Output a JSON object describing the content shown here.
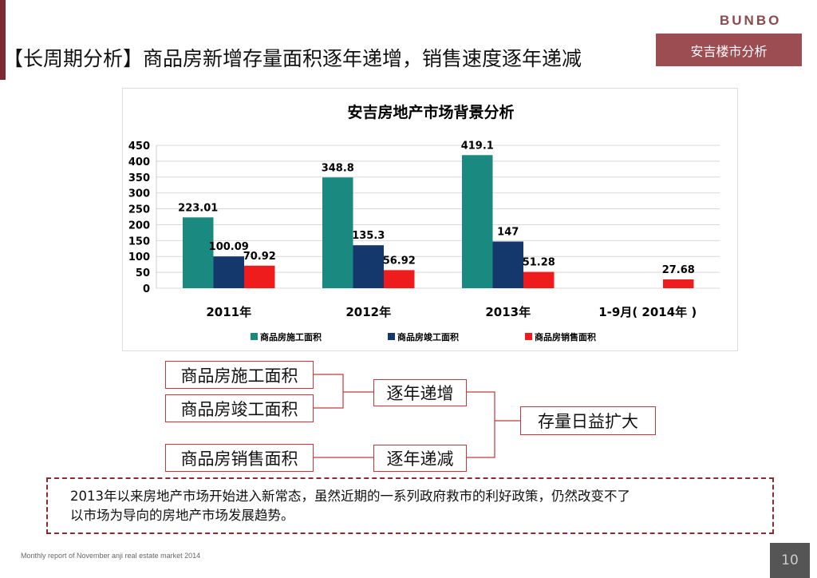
{
  "header": {
    "title": "【长周期分析】商品房新增存量面积逐年递增，销售速度逐年递减",
    "logo": "BUNBO",
    "section_tag": "安吉楼市分析"
  },
  "colors": {
    "accent": "#9b4d52",
    "teal": "#1a8a80",
    "navy": "#14386b",
    "red": "#ee1c1c"
  },
  "chart_data": {
    "type": "bar",
    "title": "安吉房地产市场背景分析",
    "categories": [
      "2011年",
      "2012年",
      "2013年",
      "1-9月( 2014年 )"
    ],
    "series": [
      {
        "name": "商品房施工面积",
        "color": "#1a8a80",
        "values": [
          223.01,
          348.8,
          419.1,
          null
        ]
      },
      {
        "name": "商品房竣工面积",
        "color": "#14386b",
        "values": [
          100.09,
          135.3,
          147,
          null
        ]
      },
      {
        "name": "商品房销售面积",
        "color": "#ee1c1c",
        "values": [
          70.92,
          56.92,
          51.28,
          27.68
        ]
      }
    ],
    "data_labels": [
      [
        "223.01",
        "348.8",
        "419.1",
        ""
      ],
      [
        "100.09",
        "135.3",
        "147",
        ""
      ],
      [
        "70.92",
        "56.92",
        "51.28",
        "27.68"
      ]
    ],
    "yticks": [
      "0",
      "50",
      "100",
      "150",
      "200",
      "250",
      "300",
      "350",
      "400",
      "450"
    ],
    "ylim": [
      0,
      450
    ],
    "grid": true,
    "legend": "bottom"
  },
  "diagram": {
    "box_construction": "商品房施工面积",
    "box_completion": "商品房竣工面积",
    "box_sales": "商品房销售面积",
    "increase": "逐年递增",
    "decrease": "逐年递减",
    "conclusion": "存量日益扩大"
  },
  "note": {
    "line1": "2013年以来房地产市场开始进入新常态，虽然近期的一系列政府救市的利好政策，仍然改变不了",
    "line2": "以市场为导向的房地产市场发展趋势。"
  },
  "footer": {
    "text": "Monthly report of November anji real estate market 2014",
    "page": "10"
  }
}
